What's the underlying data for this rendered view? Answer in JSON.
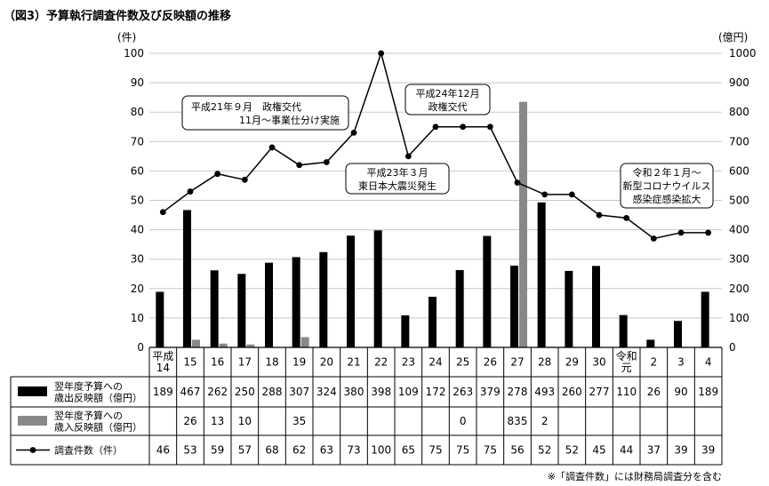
{
  "chart_data": {
    "type": "bar",
    "title": "（図3）予算執行調査件数及び反映額の推移",
    "left_unit": "(件)",
    "right_unit": "(億円)",
    "left_ticks": [
      "0",
      "10",
      "20",
      "30",
      "40",
      "50",
      "60",
      "70",
      "80",
      "90",
      "100"
    ],
    "right_ticks": [
      "0",
      "100",
      "200",
      "300",
      "400",
      "500",
      "600",
      "700",
      "800",
      "900",
      "1000"
    ],
    "ylim_left": [
      0,
      100
    ],
    "ylim_right": [
      0,
      1000
    ],
    "categories": [
      {
        "label": [
          "平成",
          "14"
        ]
      },
      {
        "label": [
          "15"
        ]
      },
      {
        "label": [
          "16"
        ]
      },
      {
        "label": [
          "17"
        ]
      },
      {
        "label": [
          "18"
        ]
      },
      {
        "label": [
          "19"
        ]
      },
      {
        "label": [
          "20"
        ]
      },
      {
        "label": [
          "21"
        ]
      },
      {
        "label": [
          "22"
        ]
      },
      {
        "label": [
          "23"
        ]
      },
      {
        "label": [
          "24"
        ]
      },
      {
        "label": [
          "25"
        ]
      },
      {
        "label": [
          "26"
        ]
      },
      {
        "label": [
          "27"
        ]
      },
      {
        "label": [
          "28"
        ]
      },
      {
        "label": [
          "29"
        ]
      },
      {
        "label": [
          "30"
        ]
      },
      {
        "label": [
          "令和",
          "元"
        ]
      },
      {
        "label": [
          "2"
        ]
      },
      {
        "label": [
          "3"
        ]
      },
      {
        "label": [
          "4"
        ]
      }
    ],
    "series": [
      {
        "name_lines": [
          "翌年度予算への",
          "歳出反映額（億円）"
        ],
        "kind": "bar",
        "axis": "right",
        "color": "#000000",
        "values": [
          189,
          467,
          262,
          250,
          288,
          307,
          324,
          380,
          398,
          109,
          172,
          263,
          379,
          278,
          493,
          260,
          277,
          110,
          26,
          90,
          189
        ],
        "labels": [
          "189",
          "467",
          "262",
          "250",
          "288",
          "307",
          "324",
          "380",
          "398",
          "109",
          "172",
          "263",
          "379",
          "278",
          "493",
          "260",
          "277",
          "110",
          "26",
          "90",
          "189"
        ]
      },
      {
        "name_lines": [
          "翌年度予算への",
          "歳入反映額（億円）"
        ],
        "kind": "bar",
        "axis": "right",
        "color": "#888888",
        "values": [
          null,
          26,
          13,
          10,
          null,
          35,
          null,
          null,
          null,
          null,
          null,
          0,
          null,
          835,
          2,
          null,
          null,
          null,
          null,
          null,
          null
        ],
        "labels": [
          "",
          "26",
          "13",
          "10",
          "",
          "35",
          "",
          "",
          "",
          "",
          "",
          "0",
          "",
          "835",
          "2",
          "",
          "",
          "",
          "",
          "",
          ""
        ]
      },
      {
        "name_lines": [
          "調査件数（件）"
        ],
        "kind": "line",
        "axis": "left",
        "color": "#000000",
        "values": [
          46,
          53,
          59,
          57,
          68,
          62,
          63,
          73,
          100,
          65,
          75,
          75,
          75,
          56,
          52,
          52,
          45,
          44,
          37,
          39,
          39
        ],
        "labels": [
          "46",
          "53",
          "59",
          "57",
          "68",
          "62",
          "63",
          "73",
          "100",
          "65",
          "75",
          "75",
          "75",
          "56",
          "52",
          "52",
          "45",
          "44",
          "37",
          "39",
          "39"
        ]
      }
    ],
    "annotations": [
      {
        "lines": [
          "平成21年９月　政権交代",
          "11月～事業仕分け実施"
        ],
        "align": "mixed"
      },
      {
        "lines": [
          "平成24年12月",
          "政権交代"
        ],
        "align": "center"
      },
      {
        "lines": [
          "平成23年３月",
          "東日本大震災発生"
        ],
        "align": "center"
      },
      {
        "lines": [
          "令和２年１月～",
          "新型コロナウイルス",
          "感染症感染拡大"
        ],
        "align": "center"
      }
    ],
    "footnote": "※「調査件数」には財務局調査分を含む",
    "grid": true
  }
}
